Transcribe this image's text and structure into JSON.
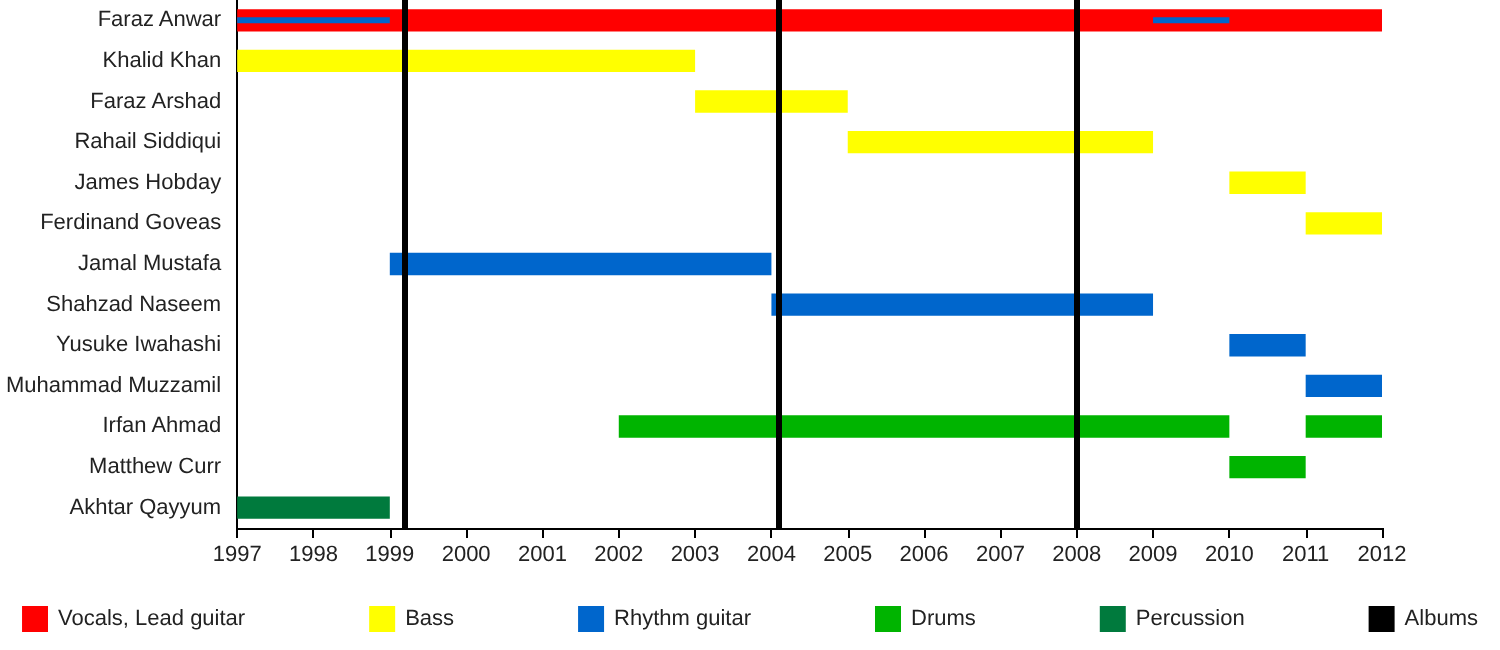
{
  "chart_data": {
    "type": "bar",
    "orientation": "horizontal",
    "legend": "bottom",
    "grid": false,
    "categories": [
      "Faraz Anwar",
      "Khalid Khan",
      "Faraz Arshad",
      "Rahail Siddiqui",
      "James Hobday",
      "Ferdinand Goveas",
      "Jamal Mustafa",
      "Shahzad Naseem",
      "Yusuke Iwahashi",
      "Muhammad Muzzamil",
      "Irfan Ahmad",
      "Matthew Curr",
      "Akhtar Qayyum"
    ],
    "xlim": [
      1997,
      2012
    ],
    "xticks": [
      1997,
      1998,
      1999,
      2000,
      2001,
      2002,
      2003,
      2004,
      2005,
      2006,
      2007,
      2008,
      2009,
      2010,
      2011,
      2012
    ],
    "series": [
      {
        "name": "Vocals, Lead guitar",
        "color": "#ff0000",
        "base": [
          1997,
          null,
          null,
          null,
          null,
          null,
          null,
          null,
          null,
          null,
          null,
          null,
          null
        ],
        "values": [
          15,
          null,
          null,
          null,
          null,
          null,
          null,
          null,
          null,
          null,
          null,
          null,
          null
        ]
      },
      {
        "name": "Bass",
        "color": "#ffff00",
        "base": [
          null,
          1997,
          2003,
          2005,
          2010,
          2011,
          null,
          null,
          null,
          null,
          null,
          null,
          null
        ],
        "values": [
          null,
          6,
          2,
          4,
          1,
          1,
          null,
          null,
          null,
          null,
          null,
          null,
          null
        ]
      },
      {
        "name": "Rhythm guitar",
        "color": "#0066cc",
        "base": [
          1997,
          null,
          null,
          null,
          null,
          null,
          1999,
          2004,
          2010,
          2011,
          null,
          null,
          null
        ],
        "values": [
          2,
          null,
          null,
          null,
          null,
          null,
          5,
          5,
          1,
          1,
          null,
          null,
          null
        ]
      },
      {
        "color": "#0066cc",
        "base": [
          2009,
          null,
          null,
          null,
          null,
          null,
          null,
          null,
          null,
          null,
          null,
          null,
          null
        ],
        "values": [
          1,
          null,
          null,
          null,
          null,
          null,
          null,
          null,
          null,
          null,
          null,
          null,
          null
        ]
      },
      {
        "name": "Drums",
        "color": "#00b400",
        "base": [
          null,
          null,
          null,
          null,
          null,
          null,
          null,
          null,
          null,
          null,
          2002,
          2010,
          null
        ],
        "values": [
          null,
          null,
          null,
          null,
          null,
          null,
          null,
          null,
          null,
          null,
          8,
          1,
          null
        ]
      },
      {
        "color": "#00b400",
        "base": [
          null,
          null,
          null,
          null,
          null,
          null,
          null,
          null,
          null,
          null,
          2011,
          null,
          null
        ],
        "values": [
          null,
          null,
          null,
          null,
          null,
          null,
          null,
          null,
          null,
          null,
          1,
          null,
          null
        ]
      },
      {
        "name": "Percussion",
        "color": "#007a3d",
        "base": [
          null,
          null,
          null,
          null,
          null,
          null,
          null,
          null,
          null,
          null,
          null,
          null,
          1997
        ],
        "values": [
          null,
          null,
          null,
          null,
          null,
          null,
          null,
          null,
          null,
          null,
          null,
          null,
          2
        ]
      }
    ],
    "ref_lines": [
      {
        "axis": "x",
        "value": 1999.2,
        "label": "Albums",
        "color": "#000000"
      },
      {
        "axis": "x",
        "value": 2004.1,
        "color": "#000000"
      },
      {
        "axis": "x",
        "value": 2008,
        "color": "#000000"
      }
    ]
  }
}
